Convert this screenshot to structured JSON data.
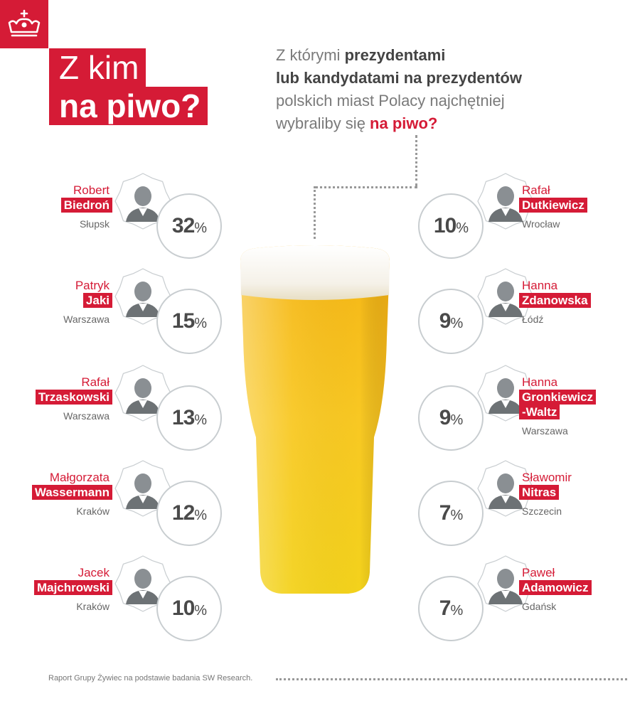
{
  "title": {
    "line1": "Z kim",
    "line2": "na piwo?"
  },
  "question": {
    "p1": "Z którymi ",
    "b1": "prezydentami",
    "b2": "lub kandydatami na prezydentów",
    "p2": "polskich miast Polacy najchętniej",
    "p3": "wybraliby się ",
    "red": "na piwo?"
  },
  "footer": "Raport Grupy Żywiec na podstawie badania SW Research.",
  "colors": {
    "accent": "#d51b36",
    "circle_border": "#c8cdd0",
    "beer": "#f6c51a"
  },
  "chart_data": {
    "type": "table",
    "unit": "%",
    "rows": [
      {
        "first": "Robert",
        "last": "Biedroń",
        "city": "Słupsk",
        "value": 32
      },
      {
        "first": "Patryk",
        "last": "Jaki",
        "city": "Warszawa",
        "value": 15
      },
      {
        "first": "Rafał",
        "last": "Trzaskowski",
        "city": "Warszawa",
        "value": 13
      },
      {
        "first": "Małgorzata",
        "last": "Wassermann",
        "city": "Kraków",
        "value": 12
      },
      {
        "first": "Jacek",
        "last": "Majchrowski",
        "city": "Kraków",
        "value": 10
      },
      {
        "first": "Rafał",
        "last": "Dutkiewicz",
        "city": "Wrocław",
        "value": 10
      },
      {
        "first": "Hanna",
        "last": "Zdanowska",
        "city": "Łódź",
        "value": 9
      },
      {
        "first": "Hanna",
        "last": "Gronkiewicz\n-Waltz",
        "city": "Warszawa",
        "value": 9
      },
      {
        "first": "Sławomir",
        "last": "Nitras",
        "city": "Szczecin",
        "value": 7
      },
      {
        "first": "Paweł",
        "last": "Adamowicz",
        "city": "Gdańsk",
        "value": 7
      }
    ]
  }
}
